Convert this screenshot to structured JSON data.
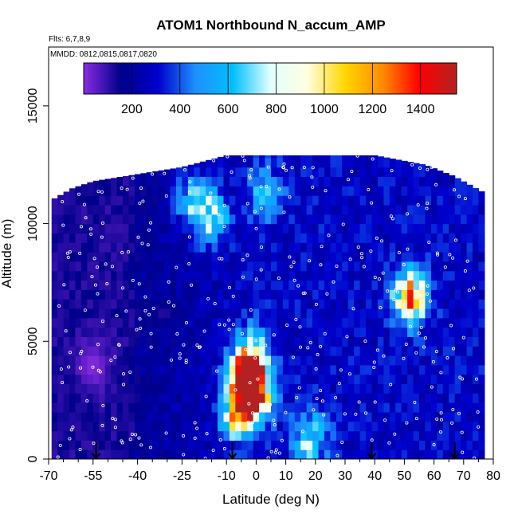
{
  "chart_data": {
    "type": "heatmap",
    "title": "ATOM1 Northbound N_accum_AMP",
    "annotations": [
      "Flts: 6,7,8,9",
      "MMDD: 0812,0815,0817,0820"
    ],
    "xlabel": "Latitude (deg N)",
    "ylabel": "Altitude (m)",
    "xlim": [
      -70,
      80
    ],
    "ylim": [
      0,
      17500
    ],
    "x_major_ticks": [
      -70,
      -55,
      -40,
      -25,
      -10,
      0,
      10,
      20,
      30,
      40,
      50,
      60,
      70,
      80
    ],
    "x_minor_ticks": [
      -65,
      -60,
      -50,
      -45,
      -35,
      -30,
      -20,
      -15,
      -5,
      5,
      15,
      25,
      35,
      45,
      55,
      65,
      75
    ],
    "y_ticks": [
      0,
      5000,
      10000,
      15000
    ],
    "colorbar": {
      "min": 0,
      "max": 1550,
      "ticks": [
        200,
        400,
        600,
        800,
        1000,
        1200,
        1400
      ],
      "colors": [
        "#8a2be2",
        "#00008b",
        "#0000cd",
        "#1e90ff",
        "#00bfff",
        "#e0ffff",
        "#ffffe0",
        "#ffd700",
        "#ff8c00",
        "#ff0000",
        "#b22222"
      ]
    },
    "marker_latitudes": [
      -54,
      -8,
      39,
      67
    ],
    "coverage": {
      "top_altitude_by_latitude": [
        [
          -69,
          11000
        ],
        [
          -62,
          11500
        ],
        [
          -55,
          11800
        ],
        [
          -40,
          12100
        ],
        [
          -25,
          12400
        ],
        [
          -10,
          12900
        ],
        [
          0,
          12900
        ],
        [
          20,
          12900
        ],
        [
          40,
          12900
        ],
        [
          57,
          12500
        ],
        [
          67,
          12000
        ],
        [
          77,
          11300
        ]
      ]
    },
    "features": [
      {
        "lat": -1,
        "alt": 2800,
        "value": 1450
      },
      {
        "lat": -3,
        "alt": 3500,
        "value": 1100
      },
      {
        "lat": -6,
        "alt": 2000,
        "value": 1050
      },
      {
        "lat": -2,
        "alt": 4500,
        "value": 700
      },
      {
        "lat": 52,
        "alt": 6900,
        "value": 1150
      },
      {
        "lat": -15,
        "alt": 10300,
        "value": 750
      },
      {
        "lat": -22,
        "alt": 11000,
        "value": 600
      },
      {
        "lat": 3,
        "alt": 11400,
        "value": 550
      },
      {
        "lat": 18,
        "alt": 900,
        "value": 650
      },
      {
        "lat": -55,
        "alt": 4000,
        "value": 130
      },
      {
        "lat": -30,
        "alt": 6000,
        "value": 200
      },
      {
        "lat": 40,
        "alt": 3000,
        "value": 250
      }
    ]
  }
}
